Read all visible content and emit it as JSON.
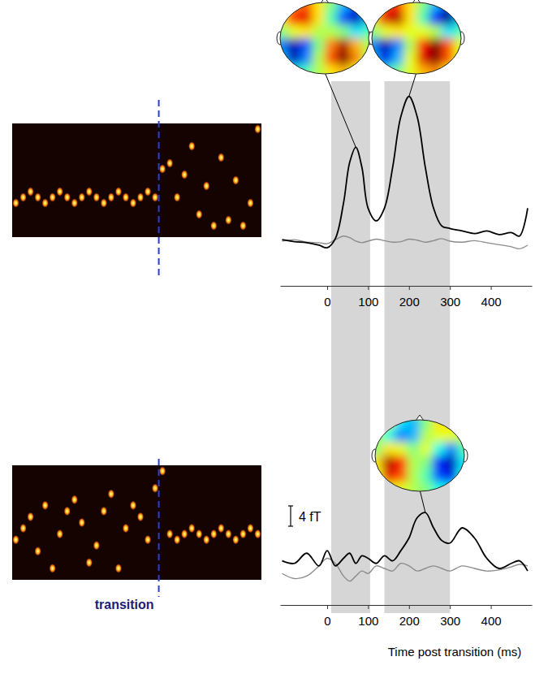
{
  "chart_data": [
    {
      "type": "heatmap",
      "xlim": [
        0,
        34
      ],
      "ylim": [
        0,
        20
      ],
      "tick_labels": false,
      "transition_x": 20,
      "tones": {
        "x": [
          0,
          1,
          2,
          3,
          4,
          5,
          6,
          7,
          8,
          9,
          10,
          11,
          12,
          13,
          14,
          15,
          16,
          17,
          18,
          19,
          20,
          21,
          22,
          23,
          24,
          25,
          26,
          27,
          28,
          29,
          30,
          31,
          32,
          33
        ],
        "values": [
          6,
          7,
          8,
          7,
          6,
          7,
          8,
          7,
          6,
          7,
          8,
          7,
          6,
          7,
          8,
          7,
          6,
          7,
          8,
          7,
          12,
          13,
          7,
          11,
          16,
          4,
          9,
          2,
          14,
          3,
          10,
          2,
          6,
          19
        ]
      }
    },
    {
      "type": "line",
      "x": [
        -110,
        -80,
        -50,
        -20,
        0,
        20,
        40,
        55,
        70,
        85,
        100,
        120,
        140,
        160,
        180,
        200,
        220,
        240,
        260,
        280,
        300,
        330,
        360,
        390,
        420,
        450,
        470,
        490
      ],
      "xlim": [
        -115,
        500
      ],
      "ylim": [
        -8.3,
        32
      ],
      "xticks": [
        0,
        100,
        200,
        300,
        400
      ],
      "tick_labels": "x",
      "bands": [
        [
          10,
          105
        ],
        [
          140,
          300
        ]
      ],
      "series": [
        {
          "color": "#000000",
          "values": [
            0.8,
            0.4,
            0.2,
            -0.3,
            -0.8,
            1.0,
            8,
            16,
            19,
            15,
            7,
            4.5,
            7,
            15,
            25,
            29,
            25,
            15,
            7,
            3.5,
            3,
            2.5,
            2.0,
            2.5,
            1.8,
            2.2,
            1.5,
            7
          ]
        },
        {
          "color": "#8c8c8c",
          "values": [
            0.5,
            0.8,
            0.3,
            0.2,
            0,
            0.8,
            1.5,
            1.2,
            0.5,
            0.2,
            0.5,
            0.9,
            0.6,
            0.3,
            0.4,
            0.9,
            0.7,
            0.3,
            0.6,
            1.0,
            0.5,
            0.3,
            0.6,
            0.2,
            -0.2,
            -0.6,
            -1.0,
            -0.3
          ]
        }
      ],
      "clim": [
        -1,
        1
      ],
      "topomaps": [
        {
          "peak_x": 70,
          "cells": [
            [
              0.2,
              0.5,
              0.6,
              0.3,
              0.0,
              -0.4,
              -0.7,
              -0.3
            ],
            [
              0.3,
              0.7,
              0.8,
              0.3,
              -0.1,
              -0.6,
              -0.9,
              -0.4
            ],
            [
              0.0,
              0.2,
              0.3,
              0.1,
              0.1,
              0.0,
              -0.3,
              -0.1
            ],
            [
              -0.5,
              -0.9,
              -0.6,
              0.0,
              0.5,
              0.9,
              0.4,
              0.1
            ],
            [
              -0.4,
              -0.9,
              -0.5,
              0.1,
              0.6,
              1.0,
              0.5,
              0.1
            ],
            [
              -0.1,
              -0.3,
              -0.1,
              0.1,
              0.3,
              0.4,
              0.2,
              0.1
            ]
          ]
        },
        {
          "peak_x": 200,
          "cells": [
            [
              0.2,
              0.6,
              0.7,
              0.3,
              0.0,
              -0.4,
              -0.8,
              -0.3
            ],
            [
              0.3,
              0.8,
              0.9,
              0.3,
              -0.1,
              -0.7,
              -1.0,
              -0.4
            ],
            [
              0.0,
              0.2,
              0.3,
              0.2,
              0.2,
              0.1,
              -0.3,
              -0.1
            ],
            [
              -0.5,
              -0.9,
              -0.5,
              0.1,
              0.7,
              1.0,
              0.6,
              0.2
            ],
            [
              -0.4,
              -0.8,
              -0.4,
              0.2,
              0.8,
              1.0,
              0.6,
              0.2
            ],
            [
              -0.1,
              -0.3,
              0.0,
              0.2,
              0.4,
              0.5,
              0.3,
              0.1
            ]
          ]
        }
      ]
    },
    {
      "type": "heatmap",
      "xlim": [
        0,
        34
      ],
      "ylim": [
        0,
        20
      ],
      "tick_labels": false,
      "transition_x": 20,
      "transition_label": "transition",
      "tones": {
        "x": [
          0,
          1,
          2,
          3,
          4,
          5,
          6,
          7,
          8,
          9,
          10,
          11,
          12,
          13,
          14,
          15,
          16,
          17,
          18,
          19,
          20,
          21,
          22,
          23,
          24,
          25,
          26,
          27,
          28,
          29,
          30,
          31,
          32,
          33
        ],
        "values": [
          7,
          9,
          11,
          5,
          13,
          2,
          8,
          12,
          14,
          10,
          3,
          6,
          12,
          15,
          2,
          9,
          13,
          11,
          7,
          16,
          19,
          8,
          7,
          8,
          9,
          8,
          7,
          8,
          9,
          8,
          7,
          8,
          9,
          8
        ]
      }
    },
    {
      "type": "line",
      "x": [
        -110,
        -80,
        -50,
        -20,
        0,
        20,
        40,
        55,
        70,
        85,
        100,
        120,
        140,
        160,
        180,
        200,
        220,
        240,
        260,
        280,
        300,
        330,
        360,
        390,
        420,
        450,
        470,
        490
      ],
      "xlim": [
        -115,
        500
      ],
      "ylim": [
        -7.2,
        20
      ],
      "xticks": [
        0,
        100,
        200,
        300,
        400
      ],
      "tick_labels": "x",
      "x_label": "Time post transition (ms)",
      "bands": [
        [
          10,
          105
        ],
        [
          140,
          300
        ]
      ],
      "scale_bar": {
        "value": 4,
        "label": "4 fT"
      },
      "series": [
        {
          "color": "#000000",
          "values": [
            1.5,
            1.0,
            3.0,
            0.5,
            3.5,
            0.5,
            2.0,
            3.0,
            1.0,
            2.5,
            2.0,
            1.0,
            2.5,
            1.5,
            3.5,
            6.0,
            10.0,
            11.0,
            8.0,
            5.5,
            5.0,
            8.0,
            6.0,
            2.0,
            0,
            1.0,
            1.5,
            -0.5
          ]
        },
        {
          "color": "#8c8c8c",
          "values": [
            -1,
            -2,
            -1.5,
            0.5,
            2.0,
            1.0,
            -1.5,
            -2.5,
            -1.5,
            -0.5,
            -1.0,
            0.5,
            0.0,
            -0.5,
            1.0,
            0.5,
            -0.5,
            0.0,
            0.5,
            0,
            -0.5,
            0.5,
            0.0,
            -0.5,
            -0.3,
            0.3,
            0.8,
            0.5
          ]
        }
      ],
      "clim": [
        -1,
        1
      ],
      "topomaps": [
        {
          "peak_x": 240,
          "cells": [
            [
              0.2,
              0.1,
              -0.3,
              -0.4,
              0.0,
              0.3,
              0.3,
              0.2
            ],
            [
              0.1,
              -0.2,
              -0.5,
              -0.4,
              0.1,
              0.2,
              0.2,
              0.1
            ],
            [
              0.0,
              0.3,
              0.2,
              0.0,
              0.2,
              -0.2,
              -0.5,
              -0.1
            ],
            [
              0.3,
              0.9,
              0.7,
              0.1,
              0.0,
              -0.7,
              -0.9,
              -0.3
            ],
            [
              0.2,
              0.8,
              0.6,
              0.1,
              -0.1,
              -0.6,
              -0.8,
              -0.2
            ],
            [
              0.1,
              0.3,
              0.2,
              0.1,
              0.0,
              -0.2,
              -0.3,
              0.0
            ]
          ]
        }
      ]
    }
  ]
}
